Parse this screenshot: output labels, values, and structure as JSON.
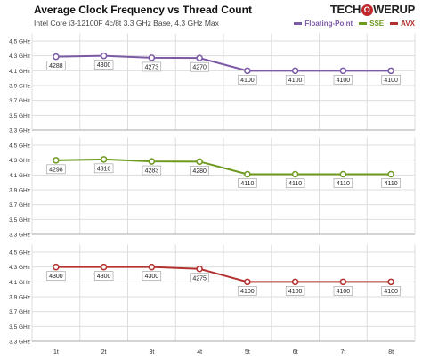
{
  "title": "Average Clock Frequency vs Thread Count",
  "subtitle": "Intel Core i3-12100F 4c/8t 3.3 GHz Base, 4.3 GHz Max",
  "logo": {
    "part1": "TECH",
    "o": "O",
    "part2": "WERUP"
  },
  "colors": {
    "fp": "#7b5aa6",
    "sse": "#6e9a1f",
    "avx": "#b3322f",
    "grid": "#dddddd",
    "axis": "#aaaaaa"
  },
  "chart_data": {
    "type": "line",
    "categories": [
      "1t",
      "2t",
      "3t",
      "4t",
      "5t",
      "6t",
      "7t",
      "8t"
    ],
    "y_tick_labels": [
      "3.3 GHz",
      "3.5 GHz",
      "3.7 GHz",
      "3.9 GHz",
      "4.1 GHz",
      "4.3 GHz",
      "4.5 GHz"
    ],
    "ylim": [
      3300,
      4600
    ],
    "legend_position": "top-right",
    "series": [
      {
        "name": "Floating-Point",
        "color": "#7b5aa6",
        "values": [
          4288,
          4300,
          4273,
          4270,
          4100,
          4100,
          4100,
          4100
        ]
      },
      {
        "name": "SSE",
        "color": "#6e9a1f",
        "values": [
          4298,
          4310,
          4283,
          4280,
          4110,
          4110,
          4110,
          4110
        ]
      },
      {
        "name": "AVX",
        "color": "#b3322f",
        "values": [
          4300,
          4300,
          4300,
          4275,
          4100,
          4100,
          4100,
          4100
        ]
      }
    ]
  }
}
